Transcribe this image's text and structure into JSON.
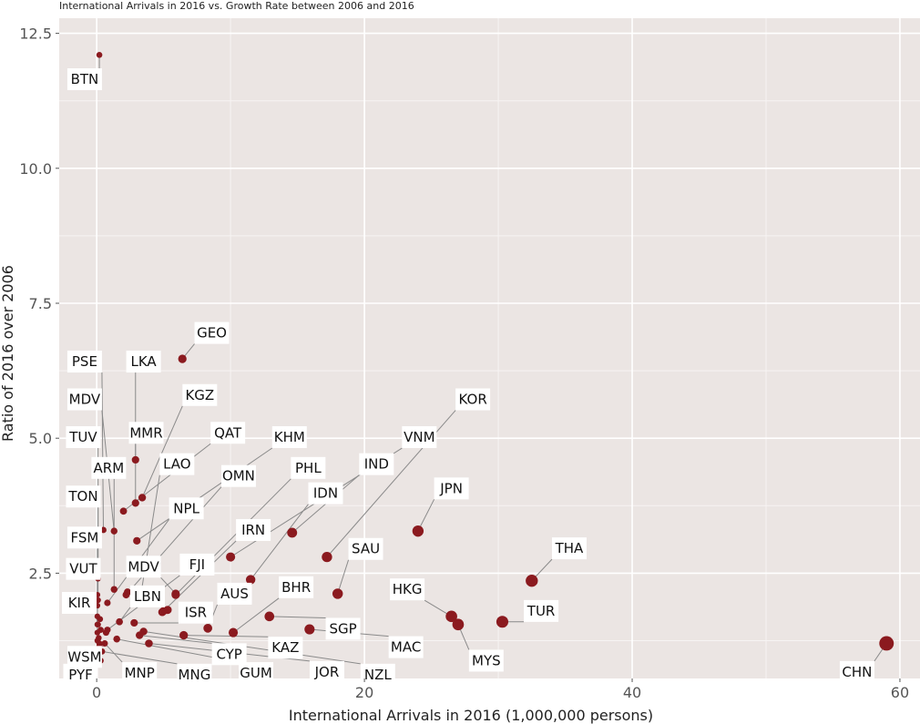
{
  "chart_data": {
    "type": "scatter",
    "title": "International Arrivals in 2016 vs. Growth Rate between 2006 and 2016",
    "xlabel": "International Arrivals in 2016 (1,000,000 persons)",
    "ylabel": "Ratio of 2016 over 2006",
    "xlim": [
      -2.8,
      61.5
    ],
    "ylim": [
      0.55,
      12.78
    ],
    "xticks": [
      {
        "v": 0,
        "label": "0"
      },
      {
        "v": 20,
        "label": "20"
      },
      {
        "v": 40,
        "label": "40"
      },
      {
        "v": 60,
        "label": "60"
      }
    ],
    "yticks": [
      {
        "v": 2.5,
        "label": "2.5"
      },
      {
        "v": 5.0,
        "label": "5.0"
      },
      {
        "v": 7.5,
        "label": "7.5"
      },
      {
        "v": 10.0,
        "label": "10.0"
      },
      {
        "v": 12.5,
        "label": "12.5"
      }
    ],
    "grid": true,
    "point_color": "#8b1a1f",
    "panel_color": "#ebe5e3",
    "points": [
      {
        "code": "BTN",
        "x": 0.2,
        "y": 12.1,
        "lx": -0.9,
        "ly": 11.65
      },
      {
        "code": "GEO",
        "x": 6.4,
        "y": 6.47,
        "lx": 8.6,
        "ly": 6.95
      },
      {
        "code": "PSE",
        "x": 0.5,
        "y": 3.3,
        "lx": -0.9,
        "ly": 6.42
      },
      {
        "code": "LKA",
        "x": 2.9,
        "y": 4.6,
        "lx": 3.5,
        "ly": 6.42
      },
      {
        "code": "MDV",
        "x": 1.3,
        "y": 3.28,
        "lx": -0.9,
        "ly": 5.72
      },
      {
        "code": "KGZ",
        "x": 3.4,
        "y": 3.9,
        "lx": 7.7,
        "ly": 5.8
      },
      {
        "code": "TUV",
        "x": 0.1,
        "y": 2.0,
        "lx": -1.0,
        "ly": 5.02
      },
      {
        "code": "MMR",
        "x": 2.9,
        "y": 3.8,
        "lx": 3.7,
        "ly": 5.1
      },
      {
        "code": "QAT",
        "x": 2.0,
        "y": 3.65,
        "lx": 9.8,
        "ly": 5.1
      },
      {
        "code": "KHM",
        "x": 3.0,
        "y": 3.1,
        "lx": 14.4,
        "ly": 5.02
      },
      {
        "code": "KOR",
        "x": 17.2,
        "y": 2.8,
        "lx": 28.1,
        "ly": 5.72
      },
      {
        "code": "VNM",
        "x": 10.0,
        "y": 2.8,
        "lx": 24.1,
        "ly": 5.02
      },
      {
        "code": "ARM",
        "x": 1.3,
        "y": 2.2,
        "lx": 0.9,
        "ly": 4.45
      },
      {
        "code": "LAO",
        "x": 3.3,
        "y": 2.1,
        "lx": 6.0,
        "ly": 4.52
      },
      {
        "code": "OMN",
        "x": 2.2,
        "y": 2.1,
        "lx": 10.6,
        "ly": 4.3
      },
      {
        "code": "PHL",
        "x": 5.9,
        "y": 2.1,
        "lx": 15.8,
        "ly": 4.45
      },
      {
        "code": "IND",
        "x": 14.6,
        "y": 3.25,
        "lx": 20.9,
        "ly": 4.52
      },
      {
        "code": "TON",
        "x": 0.1,
        "y": 2.4,
        "lx": -1.0,
        "ly": 3.92
      },
      {
        "code": "NPL",
        "x": 0.8,
        "y": 1.95,
        "lx": 6.7,
        "ly": 3.7
      },
      {
        "code": "IDN",
        "x": 11.5,
        "y": 2.38,
        "lx": 17.1,
        "ly": 3.98
      },
      {
        "code": "JPN",
        "x": 24.0,
        "y": 3.28,
        "lx": 26.5,
        "ly": 4.07
      },
      {
        "code": "FSM",
        "x": 0.05,
        "y": 1.7,
        "lx": -0.9,
        "ly": 3.16
      },
      {
        "code": "IRN",
        "x": 5.0,
        "y": 1.8,
        "lx": 11.7,
        "ly": 3.3
      },
      {
        "code": "FJI",
        "x": 0.8,
        "y": 1.45,
        "lx": 7.5,
        "ly": 2.66
      },
      {
        "code": "SAU",
        "x": 18.0,
        "y": 2.12,
        "lx": 20.1,
        "ly": 2.95
      },
      {
        "code": "THA",
        "x": 32.5,
        "y": 2.36,
        "lx": 35.3,
        "ly": 2.96
      },
      {
        "code": "VUT",
        "x": 0.05,
        "y": 1.55,
        "lx": -1.0,
        "ly": 2.58
      },
      {
        "code": "MDV",
        "x": 5.9,
        "y": 2.12,
        "lx": 3.5,
        "ly": 2.62
      },
      {
        "code": "LBN",
        "x": 1.7,
        "y": 1.6,
        "lx": 3.8,
        "ly": 2.07
      },
      {
        "code": "AUS",
        "x": 8.3,
        "y": 1.48,
        "lx": 10.3,
        "ly": 2.12
      },
      {
        "code": "BHR",
        "x": 10.2,
        "y": 1.4,
        "lx": 14.9,
        "ly": 2.24
      },
      {
        "code": "HKG",
        "x": 26.5,
        "y": 1.7,
        "lx": 23.2,
        "ly": 2.2
      },
      {
        "code": "KIR",
        "x": 0.05,
        "y": 1.4,
        "lx": -1.3,
        "ly": 1.95
      },
      {
        "code": "ISR",
        "x": 2.8,
        "y": 1.58,
        "lx": 7.4,
        "ly": 1.77
      },
      {
        "code": "TUR",
        "x": 30.3,
        "y": 1.6,
        "lx": 33.2,
        "ly": 1.8
      },
      {
        "code": "SGP",
        "x": 12.9,
        "y": 1.7,
        "lx": 18.4,
        "ly": 1.47
      },
      {
        "code": "KAZ",
        "x": 6.5,
        "y": 1.35,
        "lx": 14.1,
        "ly": 1.12
      },
      {
        "code": "MAC",
        "x": 15.9,
        "y": 1.46,
        "lx": 23.1,
        "ly": 1.13
      },
      {
        "code": "MYS",
        "x": 27.0,
        "y": 1.55,
        "lx": 29.1,
        "ly": 0.88
      },
      {
        "code": "CYP",
        "x": 3.2,
        "y": 1.35,
        "lx": 9.9,
        "ly": 1.0
      },
      {
        "code": "WSM",
        "x": 0.05,
        "y": 1.25,
        "lx": -0.9,
        "ly": 0.95
      },
      {
        "code": "PYF",
        "x": 0.2,
        "y": 1.15,
        "lx": -1.2,
        "ly": 0.62
      },
      {
        "code": "MNP",
        "x": 0.6,
        "y": 1.2,
        "lx": 3.2,
        "ly": 0.65
      },
      {
        "code": "MNG",
        "x": 0.4,
        "y": 1.05,
        "lx": 7.3,
        "ly": 0.62
      },
      {
        "code": "GUM",
        "x": 1.5,
        "y": 1.28,
        "lx": 11.9,
        "ly": 0.65
      },
      {
        "code": "JOR",
        "x": 3.9,
        "y": 1.2,
        "lx": 17.2,
        "ly": 0.67
      },
      {
        "code": "NZL",
        "x": 3.5,
        "y": 1.42,
        "lx": 21.0,
        "ly": 0.62
      },
      {
        "code": "CHN",
        "x": 59.0,
        "y": 1.2,
        "lx": 56.8,
        "ly": 0.67
      }
    ],
    "extra_points": [
      {
        "x": 0.05,
        "y": 2.1
      },
      {
        "x": 0.05,
        "y": 1.9
      },
      {
        "x": 0.1,
        "y": 1.55
      },
      {
        "x": 0.15,
        "y": 1.3
      },
      {
        "x": 0.2,
        "y": 1.2
      },
      {
        "x": 0.1,
        "y": 1.0
      },
      {
        "x": 0.3,
        "y": 0.88
      },
      {
        "x": 0.25,
        "y": 1.65
      },
      {
        "x": 0.3,
        "y": 1.45
      },
      {
        "x": 0.7,
        "y": 1.4
      },
      {
        "x": 2.3,
        "y": 2.15
      },
      {
        "x": 3.9,
        "y": 1.95
      },
      {
        "x": 5.3,
        "y": 1.82
      },
      {
        "x": 4.9,
        "y": 1.78
      }
    ]
  }
}
